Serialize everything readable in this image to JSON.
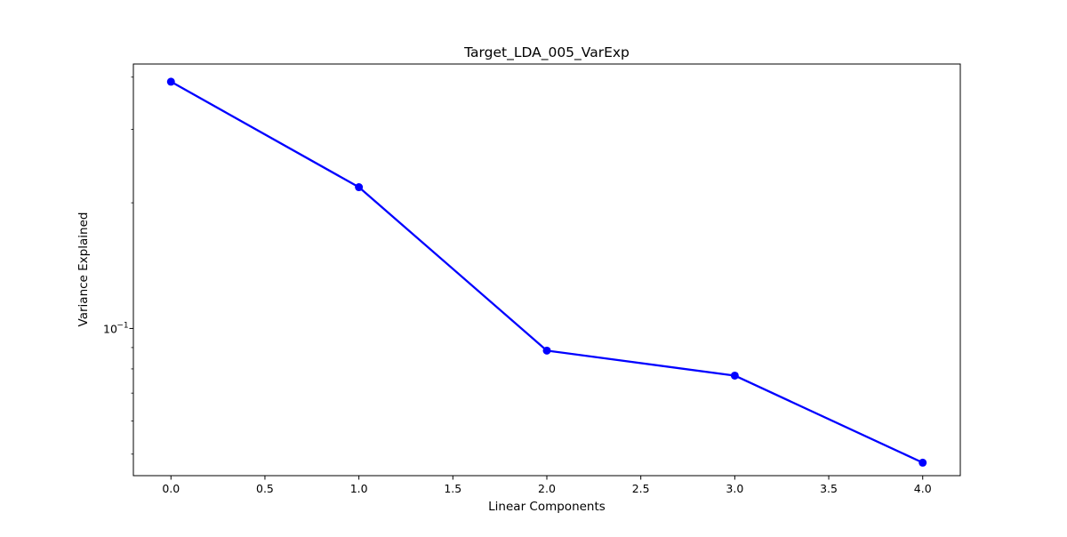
{
  "chart_data": {
    "type": "line",
    "title": "Target_LDA_005_VarExp",
    "xlabel": "Linear Components",
    "ylabel": "Variance Explained",
    "x": [
      0,
      1,
      2,
      3,
      4
    ],
    "series": [
      {
        "values": [
          0.39,
          0.218,
          0.0885,
          0.0771,
          0.0477
        ],
        "color": "#0000ff",
        "marker": "circle"
      }
    ],
    "xlim": [
      -0.2,
      4.2
    ],
    "ylim": [
      0.0444,
      0.43
    ],
    "yscale": "log",
    "xticks": [
      "0.0",
      "0.5",
      "1.0",
      "1.5",
      "2.0",
      "2.5",
      "3.0",
      "3.5",
      "4.0"
    ],
    "yticks_major": [
      "10",
      "−1"
    ],
    "grid": false,
    "legend": null
  }
}
